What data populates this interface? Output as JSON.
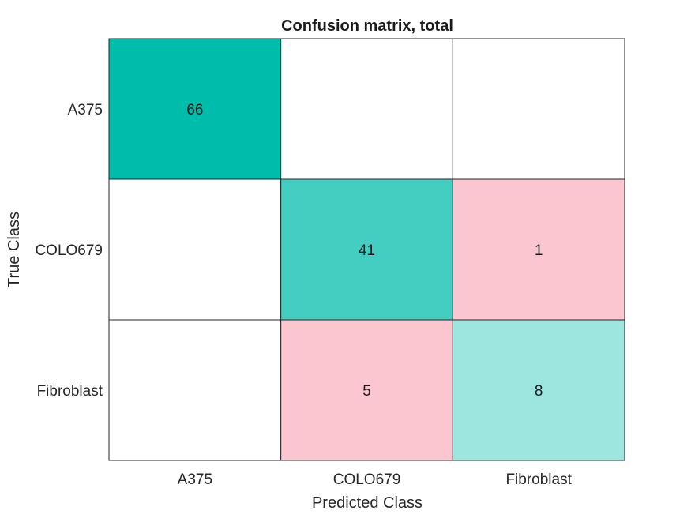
{
  "chart_data": {
    "type": "heatmap",
    "title": "Confusion matrix, total",
    "xlabel": "Predicted Class",
    "ylabel": "True Class",
    "x_categories": [
      "A375",
      "COLO679",
      "Fibroblast"
    ],
    "y_categories": [
      "A375",
      "COLO679",
      "Fibroblast"
    ],
    "values": [
      [
        66,
        null,
        null
      ],
      [
        null,
        41,
        1
      ],
      [
        null,
        5,
        8
      ]
    ],
    "colors": {
      "correct_max": "#00BCAB",
      "correct_min": "#FFFFFF",
      "incorrect_max": "#FBC6D0",
      "incorrect_min": "#FFFFFF",
      "empty": "#FFFFFF",
      "grid": "#262626"
    }
  }
}
